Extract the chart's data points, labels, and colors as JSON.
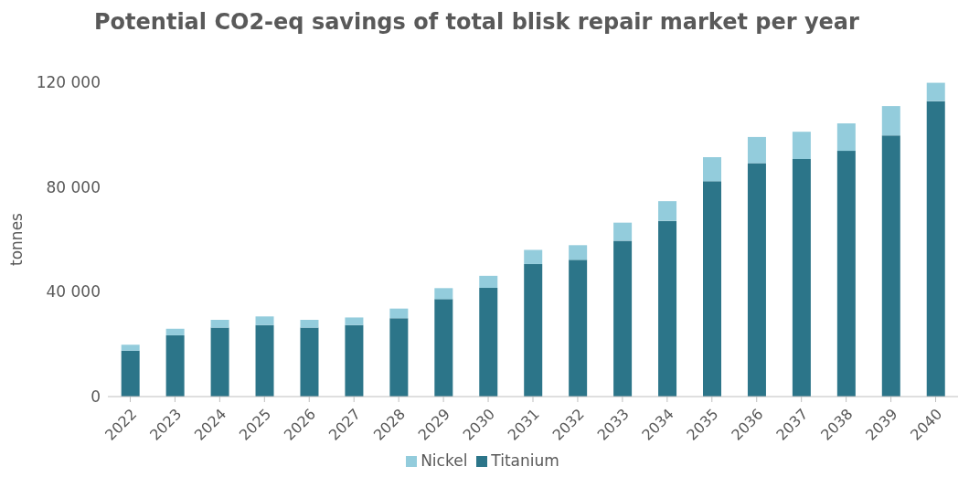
{
  "chart_data": {
    "type": "bar",
    "title": "Potential CO2-eq savings of total blisk repair market per year",
    "ylabel": "tonnes",
    "categories": [
      "2022",
      "2023",
      "2024",
      "2025",
      "2026",
      "2027",
      "2028",
      "2029",
      "2030",
      "2031",
      "2032",
      "2033",
      "2034",
      "2035",
      "2036",
      "2037",
      "2038",
      "2039",
      "2040"
    ],
    "stacked": true,
    "series": [
      {
        "name": "Titanium",
        "color": "#2c7589",
        "values": [
          17500,
          23400,
          26300,
          27300,
          26300,
          27300,
          29900,
          37200,
          41500,
          50600,
          52200,
          59500,
          67100,
          82200,
          89100,
          90700,
          93800,
          99700,
          112800
        ]
      },
      {
        "name": "Nickel",
        "color": "#93ccdc",
        "values": [
          2300,
          2500,
          3000,
          3300,
          3000,
          2900,
          3700,
          4200,
          4600,
          5400,
          5600,
          6900,
          7500,
          9200,
          10000,
          10400,
          10500,
          11200,
          7000
        ]
      }
    ],
    "ylim": [
      0,
      120000
    ],
    "yticks": [
      {
        "value": 0,
        "label": "0"
      },
      {
        "value": 40000,
        "label": "40 000"
      },
      {
        "value": 80000,
        "label": "80 000"
      },
      {
        "value": 120000,
        "label": "120 000"
      }
    ],
    "grid": false,
    "legend": "bottom"
  }
}
